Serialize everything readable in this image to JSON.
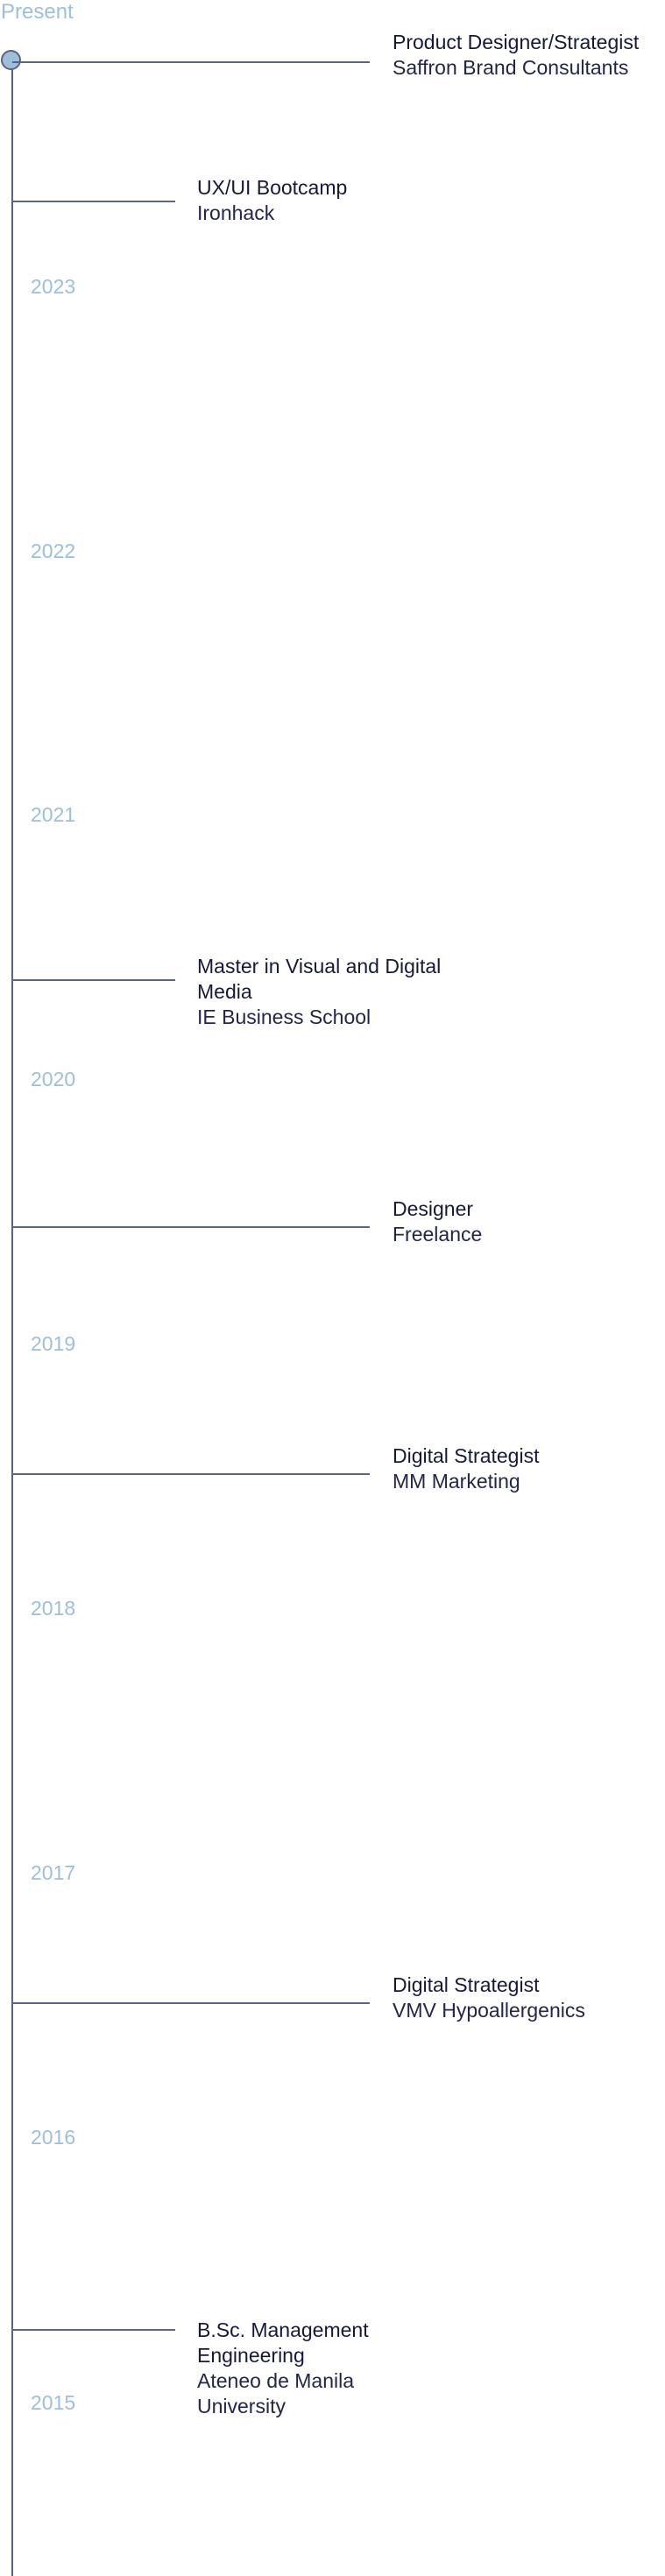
{
  "present_label": "Present",
  "entries": [
    {
      "role": "Product Designer/Strategist",
      "org": "Saffron Brand Consultants"
    },
    {
      "role": "UX/UI Bootcamp",
      "org": "Ironhack"
    },
    {
      "role": "Master in Visual and Digital Media",
      "org": "IE Business School"
    },
    {
      "role": "Designer",
      "org": "Freelance"
    },
    {
      "role": "Digital Strategist",
      "org": "MM Marketing"
    },
    {
      "role": "Digital Strategist",
      "org": "VMV Hypoallergenics"
    },
    {
      "role": "B.Sc. Management Engineering",
      "org": "Ateneo de Manila University"
    }
  ],
  "years": [
    "2023",
    "2022",
    "2021",
    "2020",
    "2019",
    "2018",
    "2017",
    "2016",
    "2015"
  ],
  "colors": {
    "axis": "#5a6483",
    "year_label": "#9cc0dc",
    "text": "#17193a"
  }
}
